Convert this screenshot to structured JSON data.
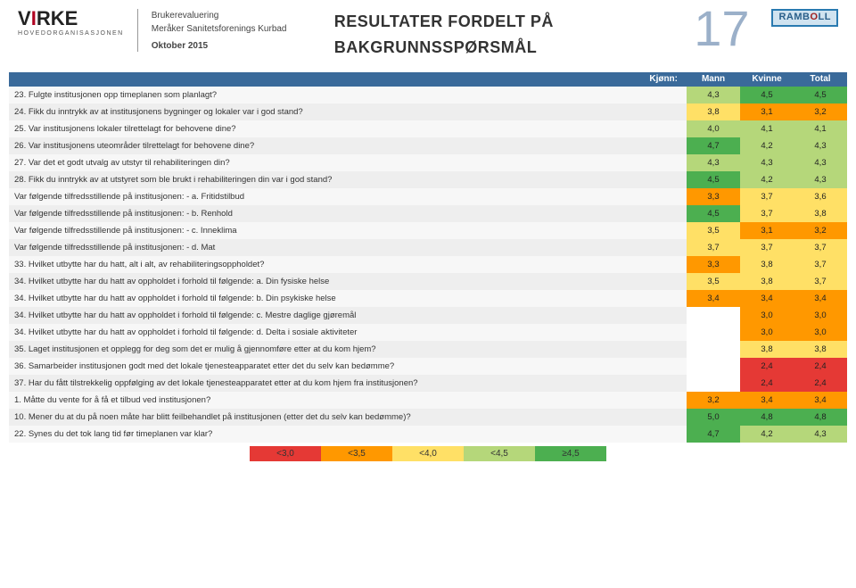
{
  "header": {
    "logo_main": "VIRKE",
    "logo_sub": "HOVEDORGANISASJONEN",
    "meta_line1": "Brukerevaluering",
    "meta_line2": "Meråker Sanitetsforenings Kurbad",
    "meta_line3": "Oktober 2015",
    "title_line1": "RESULTATER FORDELT PÅ",
    "title_line2": "BAKGRUNNSSPØRSMÅL",
    "page_number": "17",
    "ramboll": "RAMBOLL"
  },
  "table": {
    "header_question": "Kjønn:",
    "columns": [
      "Mann",
      "Kvinne",
      "Total"
    ],
    "col_header_bg": "#3a6a9a",
    "rows": [
      {
        "q": "23. Fulgte institusjonen opp timeplanen som planlagt?",
        "v": [
          "4,3",
          "4,5",
          "4,5"
        ]
      },
      {
        "q": "24. Fikk du inntrykk av at institusjonens bygninger og lokaler var i god stand?",
        "v": [
          "3,8",
          "3,1",
          "3,2"
        ]
      },
      {
        "q": "25. Var institusjonens lokaler tilrettelagt for behovene dine?",
        "v": [
          "4,0",
          "4,1",
          "4,1"
        ]
      },
      {
        "q": "26. Var institusjonens uteområder tilrettelagt for behovene dine?",
        "v": [
          "4,7",
          "4,2",
          "4,3"
        ]
      },
      {
        "q": "27. Var det et godt utvalg av utstyr til rehabiliteringen din?",
        "v": [
          "4,3",
          "4,3",
          "4,3"
        ]
      },
      {
        "q": "28. Fikk du inntrykk av at utstyret som ble brukt i rehabiliteringen din var i god stand?",
        "v": [
          "4,5",
          "4,2",
          "4,3"
        ]
      },
      {
        "q": "Var følgende tilfredsstillende på institusjonen: - a. Fritidstilbud",
        "v": [
          "3,3",
          "3,7",
          "3,6"
        ]
      },
      {
        "q": "Var følgende tilfredsstillende på institusjonen: - b. Renhold",
        "v": [
          "4,5",
          "3,7",
          "3,8"
        ]
      },
      {
        "q": "Var følgende tilfredsstillende på institusjonen: - c. Inneklima",
        "v": [
          "3,5",
          "3,1",
          "3,2"
        ]
      },
      {
        "q": "Var følgende tilfredsstillende på institusjonen: - d. Mat",
        "v": [
          "3,7",
          "3,7",
          "3,7"
        ]
      },
      {
        "q": "33. Hvilket utbytte har du hatt, alt i alt, av rehabiliteringsoppholdet?",
        "v": [
          "3,3",
          "3,8",
          "3,7"
        ]
      },
      {
        "q": "34. Hvilket utbytte har du hatt av oppholdet i forhold til følgende: a. Din fysiske helse",
        "v": [
          "3,5",
          "3,8",
          "3,7"
        ]
      },
      {
        "q": "34. Hvilket utbytte har du hatt av oppholdet i forhold til følgende: b. Din psykiske helse",
        "v": [
          "3,4",
          "3,4",
          "3,4"
        ]
      },
      {
        "q": "34. Hvilket utbytte har du hatt av oppholdet i forhold til følgende: c. Mestre daglige gjøremål",
        "v": [
          "",
          "3,0",
          "3,0"
        ]
      },
      {
        "q": "34. Hvilket utbytte har du hatt av oppholdet i forhold til følgende: d. Delta i sosiale aktiviteter",
        "v": [
          "",
          "3,0",
          "3,0"
        ]
      },
      {
        "q": "35. Laget institusjonen et opplegg for deg som det er mulig å gjennomføre etter at du kom hjem?",
        "v": [
          "",
          "3,8",
          "3,8"
        ]
      },
      {
        "q": "36. Samarbeider institusjonen godt med det lokale tjenesteapparatet etter det du selv kan bedømme?",
        "v": [
          "",
          "2,4",
          "2,4"
        ]
      },
      {
        "q": "37. Har du fått tilstrekkelig oppfølging av det lokale tjenesteapparatet etter at du kom hjem fra institusjonen?",
        "v": [
          "",
          "2,4",
          "2,4"
        ]
      },
      {
        "q": "1. Måtte du vente for å få et tilbud ved institusjonen?",
        "v": [
          "3,2",
          "3,4",
          "3,4"
        ]
      },
      {
        "q": "10. Mener du at du på noen måte har blitt feilbehandlet på institusjonen (etter det du selv kan bedømme)?",
        "v": [
          "5,0",
          "4,8",
          "4,8"
        ]
      },
      {
        "q": "22. Synes du det tok lang tid før timeplanen var klar?",
        "v": [
          "4,7",
          "4,2",
          "4,3"
        ]
      }
    ]
  },
  "legend": {
    "items": [
      {
        "label": "<3,0",
        "color": "#e53935"
      },
      {
        "label": "<3,5",
        "color": "#ff9800"
      },
      {
        "label": "<4,0",
        "color": "#ffe066"
      },
      {
        "label": "<4,5",
        "color": "#b5d77a"
      },
      {
        "label": "≥4,5",
        "color": "#4caf50"
      }
    ]
  },
  "scale": {
    "thresholds": [
      {
        "max": 3.0,
        "color": "#e53935"
      },
      {
        "max": 3.5,
        "color": "#ff9800"
      },
      {
        "max": 4.0,
        "color": "#ffe066"
      },
      {
        "max": 4.5,
        "color": "#b5d77a"
      },
      {
        "max": 99,
        "color": "#4caf50"
      }
    ],
    "empty_color": "#ffffff"
  },
  "row_alt_bg": [
    "#f7f7f7",
    "#eeeeee"
  ]
}
